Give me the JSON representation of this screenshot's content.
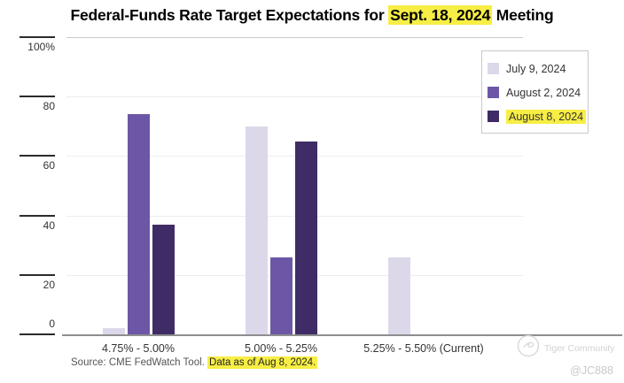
{
  "title": {
    "pre": "Federal-Funds Rate Target Expectations for ",
    "highlight": "Sept. 18, 2024",
    "post": " Meeting"
  },
  "chart_data": {
    "type": "bar",
    "title": "Federal-Funds Rate Target Expectations for Sept. 18, 2024 Meeting",
    "categories": [
      "4.75% - 5.00%",
      "5.00% - 5.25%",
      "5.25% - 5.50% (Current)"
    ],
    "series": [
      {
        "name": "July 9, 2024",
        "color": "#dcd8ea",
        "values": [
          2,
          70,
          26
        ],
        "label_highlighted": false
      },
      {
        "name": "August 2, 2024",
        "color": "#6c57a6",
        "values": [
          74,
          26,
          0
        ],
        "label_highlighted": false
      },
      {
        "name": "August 8, 2024",
        "color": "#3f2c66",
        "values": [
          37,
          65,
          0
        ],
        "label_highlighted": true
      }
    ],
    "xlabel": "",
    "ylabel": "",
    "ylim": [
      0,
      100
    ],
    "yticks": [
      {
        "value": 100,
        "label": "100%"
      },
      {
        "value": 80,
        "label": "80"
      },
      {
        "value": 60,
        "label": "60"
      },
      {
        "value": 40,
        "label": "40"
      },
      {
        "value": 20,
        "label": "20"
      },
      {
        "value": 0,
        "label": "0"
      }
    ],
    "grid": true,
    "legend_position": "top-right"
  },
  "source": {
    "plain": "Source: CME FedWatch Tool. ",
    "highlighted": "Data as of Aug 8, 2024."
  },
  "watermark": {
    "brand": "Tiger Community",
    "handle": "@JC888"
  },
  "colors": {
    "highlight": "#f7ee45",
    "grid": "#ededed",
    "top_grid": "#c9c9c9",
    "axis": "#8e8e8e"
  }
}
